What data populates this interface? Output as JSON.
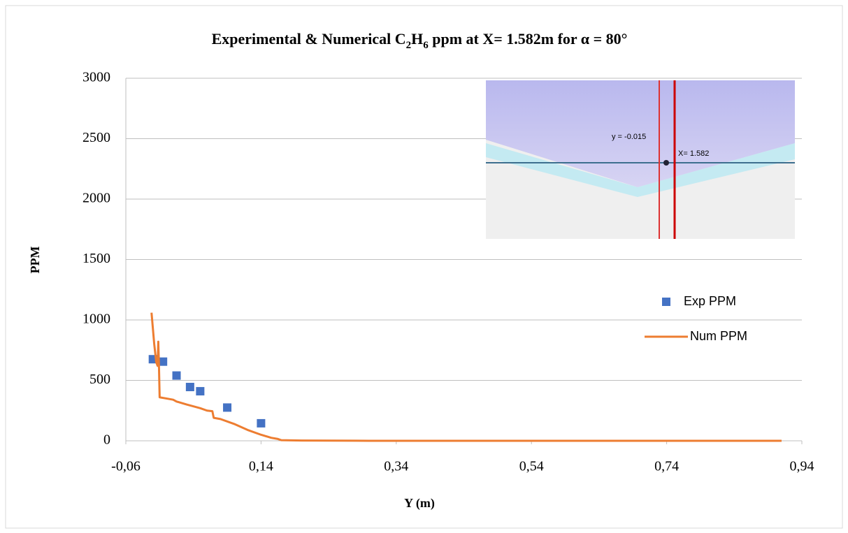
{
  "chart_data": {
    "type": "scatter_line",
    "title": [
      "Experimental & Numerical C",
      "2",
      "H",
      "6",
      " ppm at X= 1.582m for α = 80°"
    ],
    "x_label": "Y (m)",
    "y_label": "PPM",
    "xlim": [
      -0.06,
      0.94
    ],
    "xticks": [
      {
        "value": -0.06,
        "label": "-0,06"
      },
      {
        "value": 0.14,
        "label": "0,14"
      },
      {
        "value": 0.34,
        "label": "0,34"
      },
      {
        "value": 0.54,
        "label": "0,54"
      },
      {
        "value": 0.74,
        "label": "0,74"
      },
      {
        "value": 0.94,
        "label": "0,94"
      }
    ],
    "ylim": [
      0,
      3000
    ],
    "yticks": [
      0,
      500,
      1000,
      1500,
      2000,
      2500,
      3000
    ],
    "grid": true,
    "series": [
      {
        "name": "Exp PPM",
        "color": "#4472c4",
        "kind": "markers",
        "x": [
          -0.02,
          -0.005,
          0.015,
          0.035,
          0.05,
          0.09,
          0.14
        ],
        "values": [
          675,
          655,
          540,
          445,
          410,
          275,
          145
        ]
      },
      {
        "name": "Num PPM",
        "color": "#ed7d31",
        "kind": "line",
        "x": [
          -0.022,
          -0.018,
          -0.015,
          -0.013,
          -0.012,
          -0.011,
          -0.01,
          0.0,
          0.01,
          0.015,
          0.03,
          0.05,
          0.06,
          0.068,
          0.07,
          0.08,
          0.1,
          0.12,
          0.14,
          0.155,
          0.165,
          0.17,
          0.2,
          0.3,
          0.5,
          0.7,
          0.91
        ],
        "values": [
          1060,
          800,
          650,
          620,
          820,
          620,
          360,
          350,
          340,
          325,
          300,
          270,
          250,
          245,
          190,
          180,
          140,
          90,
          50,
          25,
          15,
          5,
          2,
          0,
          0,
          0,
          0
        ]
      }
    ],
    "inset_labels": [
      "y = -0.015",
      "X= 1.582"
    ]
  }
}
